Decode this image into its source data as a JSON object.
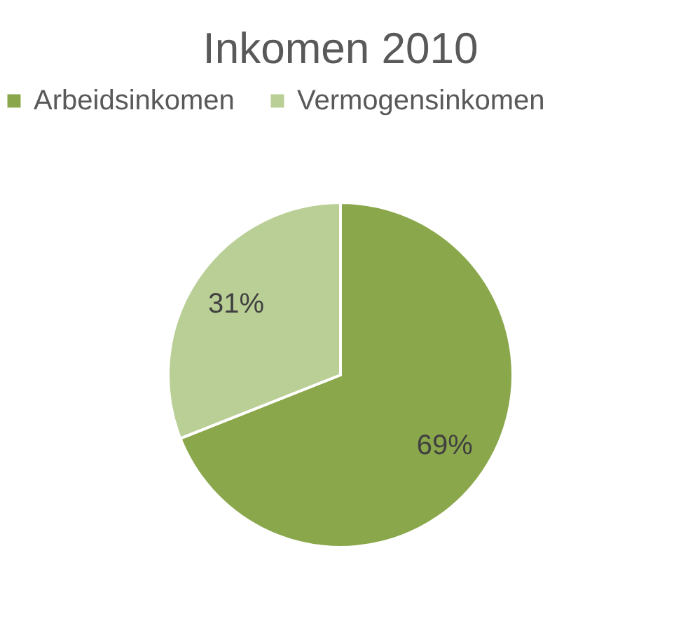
{
  "chart_data": {
    "type": "pie",
    "title": "Inkomen 2010",
    "categories": [
      "Arbeidsinkomen",
      "Vermogensinkomen"
    ],
    "values": [
      69,
      31
    ],
    "colors": [
      "#8aa84b",
      "#b9cf95"
    ],
    "value_labels": [
      "69%",
      "31%"
    ],
    "legend": "top"
  }
}
